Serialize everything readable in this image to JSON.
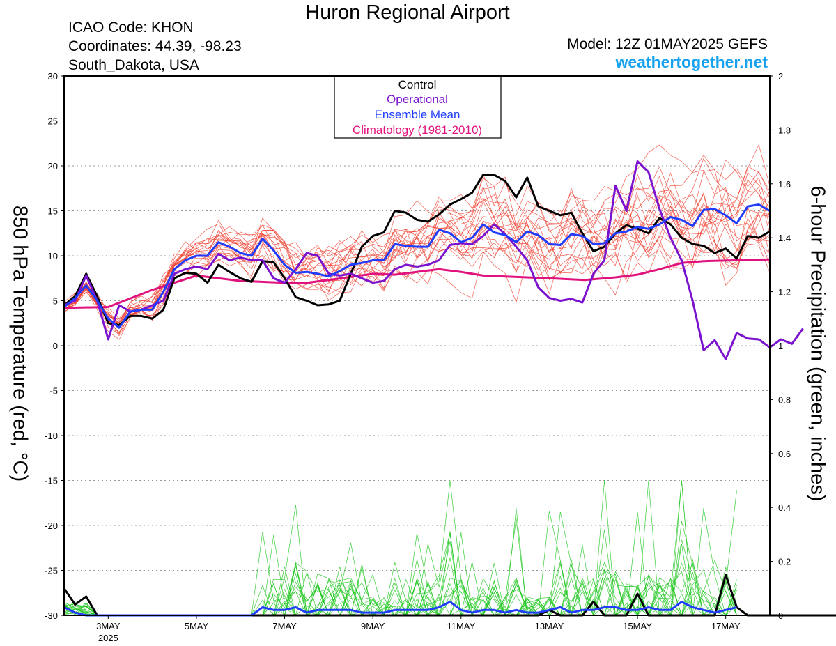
{
  "header": {
    "title": "Huron Regional Airport",
    "icao": "ICAO Code: KHON",
    "coords": "Coordinates: 44.39, -98.23",
    "region": "South_Dakota, USA",
    "model": "Model: 12Z 01MAY2025 GEFS",
    "site": "weathertogether.net"
  },
  "colors": {
    "control": "#000000",
    "operational": "#7a12cf",
    "ensemble_mean": "#1f3cff",
    "climatology": "#e0137e",
    "members_temp": "#f04030",
    "members_precip": "#22c822",
    "site": "#17a2f0"
  },
  "chart_data": {
    "type": "line",
    "xlabel": "",
    "ylabel": "850 hPa Temperature (red, °C)",
    "y2label": "6-hour Precipitation (green, inches)",
    "ylim": [
      -30,
      30
    ],
    "y2lim": [
      0,
      2
    ],
    "x_unit": "days since 01MAY2025 12Z",
    "xlim": [
      0.5,
      16.5
    ],
    "x_ticks": [
      {
        "x": 1.5,
        "label": "3MAY",
        "sub": "2025"
      },
      {
        "x": 3.5,
        "label": "5MAY",
        "sub": ""
      },
      {
        "x": 5.5,
        "label": "7MAY",
        "sub": ""
      },
      {
        "x": 7.5,
        "label": "9MAY",
        "sub": ""
      },
      {
        "x": 9.5,
        "label": "11MAY",
        "sub": ""
      },
      {
        "x": 11.5,
        "label": "13MAY",
        "sub": ""
      },
      {
        "x": 13.5,
        "label": "15MAY",
        "sub": ""
      },
      {
        "x": 15.5,
        "label": "17MAY",
        "sub": ""
      }
    ],
    "y_ticks": [
      30,
      25,
      20,
      15,
      10,
      5,
      0,
      -5,
      -10,
      -15,
      -20,
      -25,
      -30
    ],
    "y2_ticks": [
      2,
      1.8,
      1.6,
      1.4,
      1.2,
      1,
      0.8,
      0.6,
      0.4,
      0.2,
      0
    ],
    "grid": true,
    "legend_position": "top-center",
    "legend": [
      "Control",
      "Operational",
      "Ensemble Mean",
      "Climatology (1981-2010)"
    ],
    "x_start": 0.5,
    "x_step": 0.25,
    "series": [
      {
        "name": "Control",
        "axis": "temp",
        "values": [
          4.5,
          5.5,
          8,
          5.5,
          2.5,
          2.3,
          3.3,
          3.3,
          3,
          4,
          7.5,
          8.1,
          8,
          7,
          9,
          8.2,
          7.5,
          7.1,
          9.4,
          9.3,
          7.5,
          5.4,
          5,
          4.5,
          4.6,
          5,
          8,
          11,
          12.2,
          12.6,
          15,
          14.8,
          14,
          13.8,
          14.6,
          15.7,
          16.3,
          17,
          19,
          19,
          18.3,
          16.5,
          18.7,
          15.5,
          15,
          14.5,
          14.8,
          12.5,
          10.5,
          11,
          12.5,
          13.4,
          13,
          12.5,
          14.2,
          13.5,
          12,
          11.3,
          11.1,
          10.3,
          10.8,
          9.7,
          12.2,
          12,
          12.7
        ]
      },
      {
        "name": "Ensemble Mean",
        "axis": "temp",
        "values": [
          4.3,
          5.3,
          6.7,
          5,
          3,
          2,
          3.8,
          4,
          4,
          6,
          8.5,
          9.5,
          10,
          10,
          11.5,
          11,
          10.3,
          10,
          11.9,
          10.6,
          9,
          8.1,
          8.2,
          8,
          7.7,
          8.3,
          9,
          9.2,
          9.5,
          9.5,
          11.3,
          11.1,
          11,
          11,
          12.9,
          12.5,
          11.5,
          12,
          13.5,
          12.6,
          12.3,
          11.5,
          12.7,
          12.3,
          11.3,
          11.2,
          12.4,
          12.2,
          11.3,
          11.4,
          12.5,
          12.7,
          13.2,
          13,
          13.5,
          14.3,
          14,
          13.3,
          15.1,
          15.2,
          14.5,
          13.6,
          15.5,
          15.7,
          15
        ]
      },
      {
        "name": "Operational",
        "axis": "temp",
        "values": [
          4.5,
          5,
          7.8,
          5,
          0.7,
          4.5,
          3.8,
          4,
          4.5,
          5,
          8,
          8.5,
          8.8,
          8.5,
          10.2,
          9.5,
          9.8,
          9.5,
          9.5,
          7.5,
          7,
          8.5,
          10.3,
          10,
          8,
          7.8,
          8,
          7.5,
          7,
          7.2,
          8.5,
          9,
          8.8,
          9,
          9.5,
          11.2,
          11.4,
          11.3,
          12.2,
          13.5,
          12.4,
          11,
          9.5,
          6.5,
          5.3,
          5,
          5.2,
          4.8,
          8,
          9.5,
          17.8,
          15,
          20.5,
          19.3,
          15.2,
          12,
          9.5,
          5,
          -0.5,
          0.6,
          -1.5,
          1.4,
          0.8,
          0.7,
          -0.2,
          0.7,
          0.2,
          1.9
        ]
      },
      {
        "name": "Climatology (1981-2010)",
        "axis": "temp",
        "xs": [
          0.5,
          1.5,
          2.5,
          3,
          3.5,
          4.5,
          5.5,
          6,
          6.5,
          7.5,
          8,
          9,
          9.5,
          10,
          11,
          11.5,
          12.3,
          13,
          13.5,
          14,
          14.5,
          15,
          16.5
        ],
        "values": [
          4.2,
          4.3,
          6.2,
          7,
          7.8,
          7.2,
          7,
          7,
          7.3,
          8,
          7.9,
          8.5,
          8.2,
          7.8,
          7.6,
          7.5,
          7.3,
          7.6,
          7.9,
          8.5,
          9.2,
          9.4,
          9.6
        ]
      },
      {
        "name": "Control",
        "axis": "precip",
        "values": [
          0.1,
          0.04,
          0.07,
          0,
          0,
          0,
          0,
          0,
          0,
          0,
          0,
          0,
          0,
          0,
          0,
          0,
          0,
          0,
          0,
          0,
          0,
          0,
          0,
          0,
          0,
          0,
          0,
          0,
          0,
          0,
          0,
          0,
          0,
          0,
          0,
          0,
          0,
          0,
          0,
          0,
          0,
          0,
          0,
          0,
          0.02,
          0,
          0,
          0,
          0.05,
          0,
          0,
          0,
          0.08,
          0,
          0,
          0,
          0,
          0,
          0,
          0,
          0.15,
          0.03,
          0,
          0,
          0,
          0,
          0,
          0,
          0,
          0,
          0
        ]
      },
      {
        "name": "Ensemble Mean",
        "axis": "precip",
        "values": [
          0.03,
          0.01,
          0,
          0,
          0,
          0,
          0,
          0,
          0,
          0,
          0,
          0,
          0,
          0,
          0,
          0,
          0,
          0,
          0.03,
          0.02,
          0.02,
          0.03,
          0.01,
          0.02,
          0.02,
          0.02,
          0.02,
          0.01,
          0.01,
          0.01,
          0.02,
          0.02,
          0.02,
          0.02,
          0.03,
          0.05,
          0.02,
          0.01,
          0.02,
          0.02,
          0.01,
          0.02,
          0.01,
          0.01,
          0.02,
          0.03,
          0.01,
          0.02,
          0.02,
          0.03,
          0.03,
          0.02,
          0.02,
          0.03,
          0.02,
          0.02,
          0.05,
          0.03,
          0.02,
          0.01,
          0.02,
          0.03
        ]
      }
    ]
  }
}
